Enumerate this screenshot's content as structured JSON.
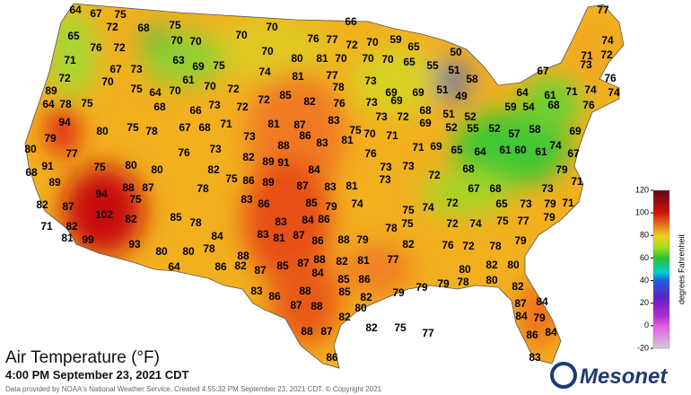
{
  "title": "Air Temperature (°F)",
  "subtitle": "4:00 PM September 23, 2021 CDT",
  "credit": "Data provided by NOAA's National Weather Service. Created 4:55:32 PM September 23, 2021 CDT. © Copyright 2021",
  "logo": "Mesonet",
  "colorbar": {
    "label": "degrees Fahrenheit",
    "lim": [
      -20,
      120
    ],
    "ticks": [
      120,
      100,
      80,
      60,
      40,
      20,
      0,
      -20
    ]
  },
  "temperatures": [
    64,
    67,
    75,
    72,
    68,
    75,
    70,
    70,
    66,
    77,
    65,
    76,
    72,
    70,
    70,
    76,
    77,
    72,
    70,
    59,
    65,
    50,
    74,
    71,
    67,
    63,
    69,
    75,
    70,
    80,
    81,
    70,
    70,
    70,
    65,
    55,
    71,
    72,
    72,
    70,
    73,
    61,
    70,
    74,
    81,
    77,
    51,
    58,
    67,
    73,
    76,
    89,
    75,
    64,
    70,
    72,
    78,
    73,
    69,
    69,
    51,
    49,
    74,
    74,
    64,
    78,
    75,
    68,
    66,
    73,
    72,
    72,
    85,
    82,
    76,
    73,
    69,
    68,
    64,
    61,
    71,
    76,
    94,
    80,
    75,
    78,
    67,
    68,
    71,
    81,
    87,
    83,
    75,
    73,
    72,
    69,
    51,
    52,
    59,
    54,
    68,
    52,
    55,
    52,
    57,
    58,
    69,
    80,
    79,
    73,
    73,
    88,
    86,
    83,
    81,
    70,
    71,
    69,
    71,
    65,
    64,
    61,
    60,
    61,
    74,
    67,
    77,
    76,
    82,
    89,
    91,
    84,
    76,
    73,
    73,
    68,
    79,
    68,
    91,
    75,
    80,
    80,
    82,
    75,
    86,
    87,
    83,
    81,
    73,
    72,
    89,
    88,
    87,
    78,
    89,
    67,
    68,
    73,
    71,
    82,
    87,
    94,
    75,
    83,
    86,
    85,
    79,
    74,
    75,
    74,
    72,
    65,
    73,
    79,
    71,
    71,
    82,
    102,
    82,
    85,
    78,
    83,
    84,
    86,
    75,
    72,
    74,
    75,
    77,
    79,
    81,
    99,
    93,
    84,
    83,
    81,
    87,
    86,
    88,
    79,
    78,
    76,
    72,
    78,
    79,
    80,
    78,
    82,
    80,
    64,
    86,
    82,
    87,
    85,
    88,
    82,
    81,
    77,
    80,
    82,
    80,
    88,
    87,
    79,
    78,
    80,
    86,
    85,
    84,
    83,
    86,
    88,
    85,
    82,
    79,
    79,
    82,
    88,
    87,
    80,
    84,
    87,
    84,
    79,
    82,
    82,
    75,
    77,
    88,
    87,
    86,
    84,
    86,
    83
  ]
}
